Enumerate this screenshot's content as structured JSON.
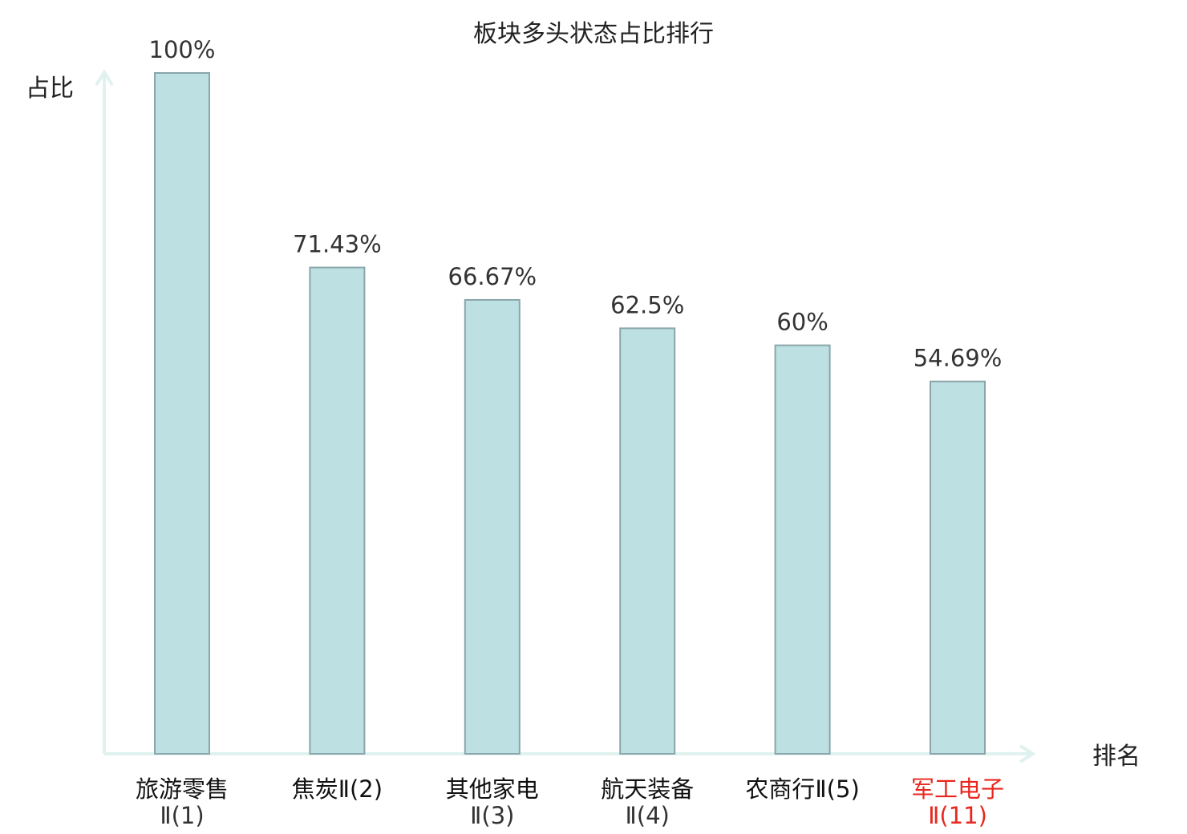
{
  "chart_data": {
    "type": "bar",
    "title": "板块多头状态占比排行",
    "ylabel": "占比",
    "xlabel": "排名",
    "ylim": [
      0,
      100
    ],
    "categories": [
      [
        "旅游零售",
        "Ⅱ(1)"
      ],
      [
        "焦炭Ⅱ(2)"
      ],
      [
        "其他家电",
        "Ⅱ(3)"
      ],
      [
        "航天装备",
        "Ⅱ(4)"
      ],
      [
        "农商行Ⅱ(5)"
      ],
      [
        "军工电子",
        "Ⅱ(11)"
      ]
    ],
    "values": [
      100,
      71.43,
      66.67,
      62.5,
      60,
      54.69
    ],
    "value_labels": [
      "100%",
      "71.43%",
      "66.67%",
      "62.5%",
      "60%",
      "54.69%"
    ],
    "highlight_index": 5,
    "colors": {
      "bar_fill": "#bde0e3",
      "bar_stroke": "#8aa6aa",
      "axis": "#dff2ef",
      "text": "#333333",
      "highlight_text": "#e8271f"
    },
    "grid": false,
    "legend": "none"
  }
}
